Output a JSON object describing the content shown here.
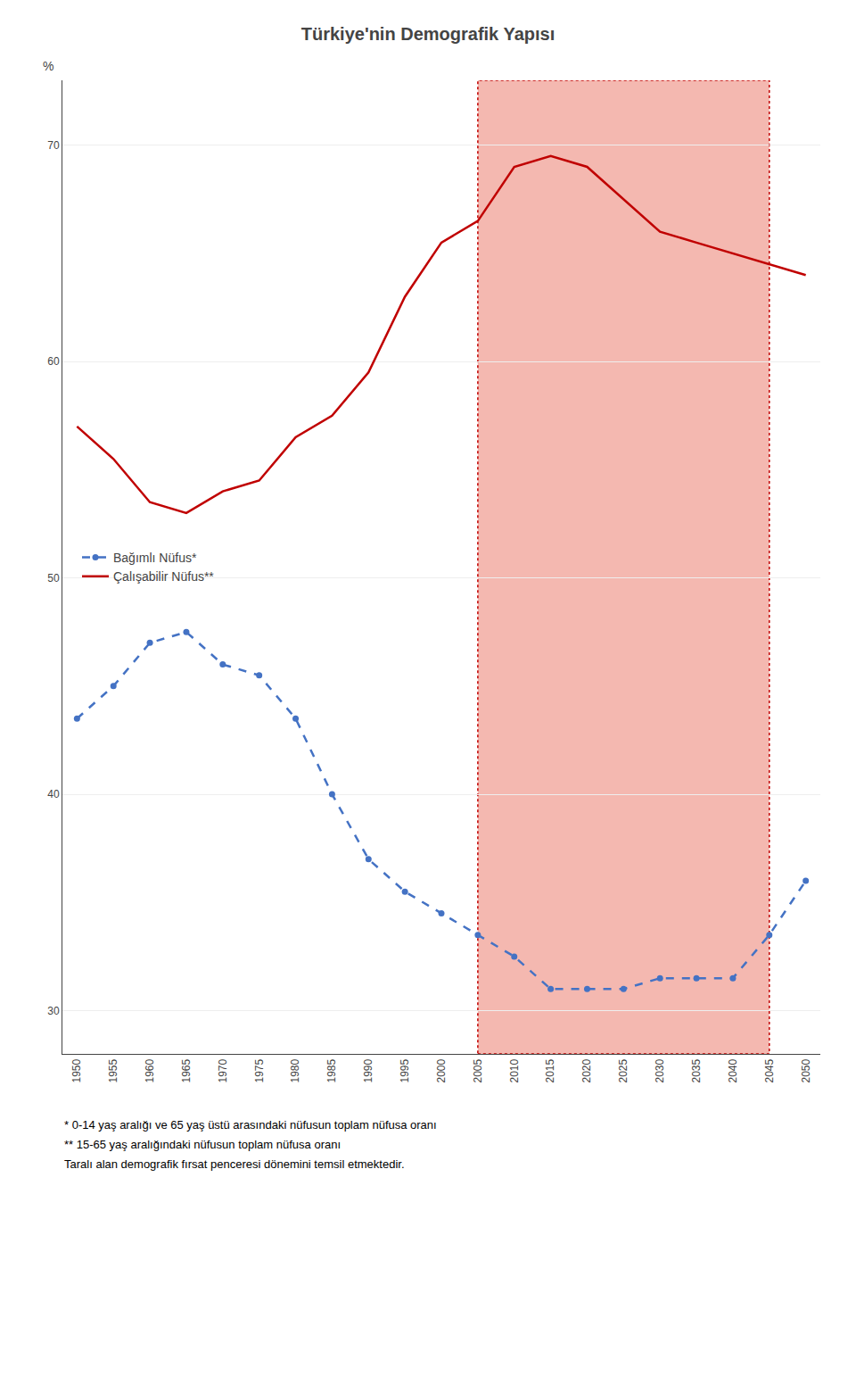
{
  "chart_data": {
    "type": "line",
    "title": "Türkiye'nin Demografik Yapısı",
    "y_label": "%",
    "x": [
      1950,
      1955,
      1960,
      1965,
      1970,
      1975,
      1980,
      1985,
      1990,
      1995,
      2000,
      2005,
      2010,
      2015,
      2020,
      2025,
      2030,
      2035,
      2040,
      2045,
      2050
    ],
    "series": [
      {
        "name": "Bağımlı Nüfus*",
        "color": "#4472c4",
        "line_style": "dashed",
        "marker": "circle",
        "values": [
          43.5,
          45.0,
          47.0,
          47.5,
          46.0,
          45.5,
          43.5,
          40.0,
          37.0,
          35.5,
          34.5,
          33.5,
          32.5,
          31.0,
          31.0,
          31.0,
          31.5,
          31.5,
          31.5,
          33.5,
          36.0
        ]
      },
      {
        "name": "Çalışabilir Nüfus**",
        "color": "#c00000",
        "line_style": "solid",
        "marker": "none",
        "values": [
          57.0,
          55.5,
          53.5,
          53.0,
          54.0,
          54.5,
          56.5,
          57.5,
          59.5,
          63.0,
          65.5,
          66.5,
          69.0,
          69.5,
          69.0,
          67.5,
          66.0,
          65.5,
          65.0,
          64.5,
          64.0
        ]
      }
    ],
    "xlim": [
      1948,
      2052
    ],
    "xticks": [
      1950,
      1955,
      1960,
      1965,
      1970,
      1975,
      1980,
      1985,
      1990,
      1995,
      2000,
      2005,
      2010,
      2015,
      2020,
      2025,
      2030,
      2035,
      2040,
      2045,
      2050
    ],
    "ylim": [
      28,
      73
    ],
    "yticks": [
      30,
      40,
      50,
      60,
      70
    ],
    "shaded_region": {
      "x": [
        2005,
        2045
      ],
      "color": "#f4b8b0",
      "border_color": "#c00000"
    },
    "grid": true,
    "legend": "left",
    "annotations": [
      "* 0-14 yaş aralığı ve 65 yaş üstü arasındaki nüfusun toplam nüfusa oranı",
      "** 15-65 yaş aralığındaki nüfusun toplam nüfusa oranı",
      "Taralı alan demografik fırsat penceresi dönemini temsil etmektedir."
    ]
  }
}
